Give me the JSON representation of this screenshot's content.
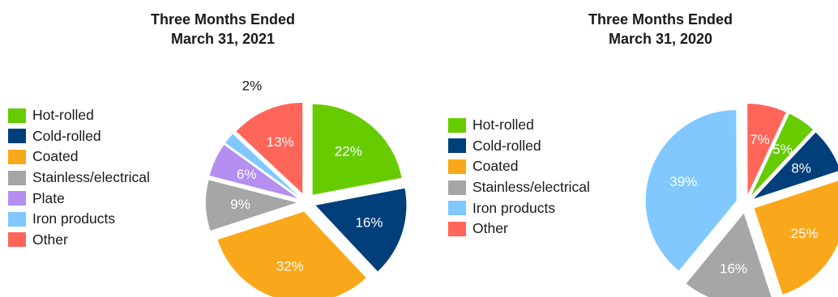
{
  "chart_data": [
    {
      "type": "pie",
      "title": [
        "Three Months Ended",
        "March 31, 2021"
      ],
      "legend": [
        "Hot-rolled",
        "Cold-rolled",
        "Coated",
        "Stainless/electrical",
        "Plate",
        "Iron products",
        "Other"
      ],
      "slices": [
        {
          "label": "Hot-rolled",
          "value": 22,
          "display": "22%",
          "color": "#66cc00"
        },
        {
          "label": "Cold-rolled",
          "value": 16,
          "display": "16%",
          "color": "#003f7a"
        },
        {
          "label": "Coated",
          "value": 32,
          "display": "32%",
          "color": "#f9a81b"
        },
        {
          "label": "Stainless/electrical",
          "value": 9,
          "display": "9%",
          "color": "#a6a6a6"
        },
        {
          "label": "Plate",
          "value": 6,
          "display": "6%",
          "color": "#b48ef0"
        },
        {
          "label": "Iron products",
          "value": 2,
          "display": "2%",
          "color": "#80c8ff"
        },
        {
          "label": "Other",
          "value": 13,
          "display": "13%",
          "color": "#ff6659"
        }
      ]
    },
    {
      "type": "pie",
      "title": [
        "Three Months Ended",
        "March 31, 2020"
      ],
      "legend": [
        "Hot-rolled",
        "Cold-rolled",
        "Coated",
        "Stainless/electrical",
        "Iron products",
        "Other"
      ],
      "slices": [
        {
          "label": "Hot-rolled",
          "value": 5,
          "display": "5%",
          "color": "#66cc00"
        },
        {
          "label": "Cold-rolled",
          "value": 8,
          "display": "8%",
          "color": "#003f7a"
        },
        {
          "label": "Coated",
          "value": 25,
          "display": "25%",
          "color": "#f9a81b"
        },
        {
          "label": "Stainless/electrical",
          "value": 16,
          "display": "16%",
          "color": "#a6a6a6"
        },
        {
          "label": "Iron products",
          "value": 39,
          "display": "39%",
          "color": "#80c8ff"
        },
        {
          "label": "Other",
          "value": 7,
          "display": "7%",
          "color": "#ff6659"
        }
      ]
    }
  ]
}
